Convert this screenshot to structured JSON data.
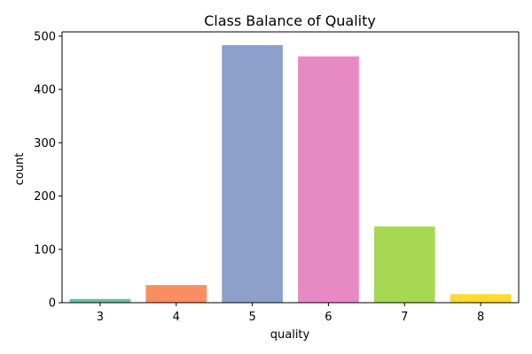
{
  "chart_data": {
    "type": "bar",
    "title": "Class Balance of Quality",
    "xlabel": "quality",
    "ylabel": "count",
    "categories": [
      "3",
      "4",
      "5",
      "6",
      "7",
      "8"
    ],
    "values": [
      7,
      33,
      483,
      462,
      143,
      16
    ],
    "ylim": [
      0,
      508
    ],
    "yticks": [
      0,
      100,
      200,
      300,
      400,
      500
    ],
    "colors": [
      "#66c2a5",
      "#fc8d62",
      "#8da0cb",
      "#e78ac3",
      "#a6d854",
      "#ffd92f"
    ],
    "grid": false,
    "legend": "none"
  }
}
